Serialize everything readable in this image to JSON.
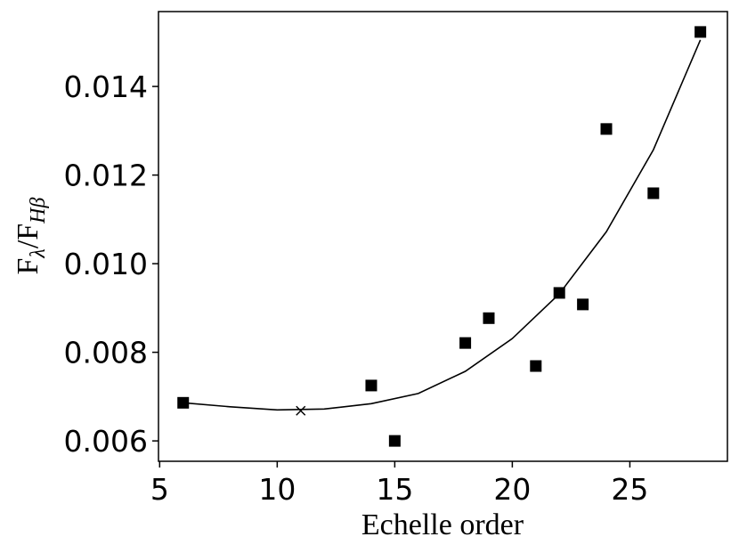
{
  "chart_data": {
    "type": "scatter",
    "xlabel": "Echelle order",
    "ylabel": [
      "F",
      "λ",
      "/F",
      "Hβ"
    ],
    "xlim": [
      4.95,
      29.15
    ],
    "ylim": [
      0.00554,
      0.01569
    ],
    "xticks": [
      5,
      10,
      15,
      20,
      25
    ],
    "yticks": [
      0.006,
      0.008,
      {
        "value": 0.01,
        "label": "0.010"
      },
      0.012,
      0.014
    ],
    "series": [
      {
        "marker": "square",
        "color": "#000000",
        "x": [
          6,
          14,
          15,
          18,
          19,
          21,
          22,
          23,
          24,
          26,
          28
        ],
        "values": [
          0.00686,
          0.00725,
          0.006,
          0.00821,
          0.00877,
          0.00769,
          0.00934,
          0.00908,
          0.01304,
          0.01159,
          0.01523
        ]
      },
      {
        "marker": "x",
        "color": "#000000",
        "x": [
          11
        ],
        "values": [
          0.00668
        ]
      },
      {
        "marker": "line",
        "color": "#000000",
        "x": [
          6,
          8,
          10,
          12,
          14,
          16,
          18,
          20,
          22,
          24,
          26,
          28
        ],
        "values": [
          0.00686,
          0.00677,
          0.0067,
          0.00672,
          0.00684,
          0.00707,
          0.00757,
          0.00831,
          0.00932,
          0.01072,
          0.01257,
          0.01505
        ]
      }
    ]
  }
}
